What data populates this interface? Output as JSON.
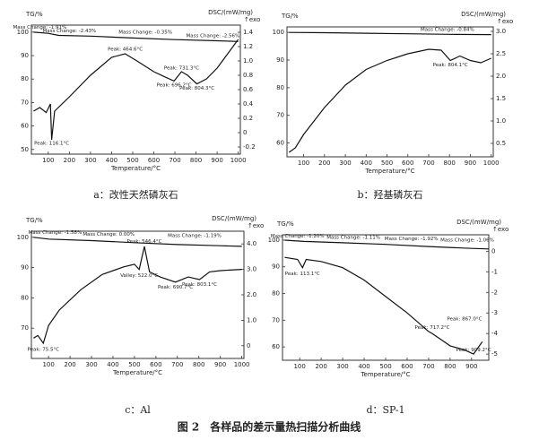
{
  "figure_caption": "图 2　各样品的差示量热扫描分析曲线",
  "chart_data": [
    {
      "type": "line",
      "caption": "a：改性天然磷灰石",
      "ylabel": "TG/%",
      "y2label": "DSC/(mW/mg)",
      "exo_label": "↑exo",
      "xlabel": "Temperature/°C",
      "xlim": [
        20,
        1010
      ],
      "xticks": [
        100,
        200,
        300,
        400,
        500,
        600,
        700,
        800,
        900,
        1000
      ],
      "ylim": [
        48,
        103
      ],
      "yticks": [
        50,
        60,
        70,
        80,
        90,
        100
      ],
      "y2lim": [
        -0.3,
        1.5
      ],
      "y2ticks": [
        -0.2,
        0,
        0.2,
        0.4,
        0.6,
        0.8,
        {
          "value": 1,
          "label": "1.0"
        },
        1.2,
        1.4
      ],
      "series": [
        {
          "color": "#111",
          "axis": "y",
          "x": [
            30,
            100,
            150,
            300,
            500,
            700,
            900,
            1000
          ],
          "values": [
            100,
            99.5,
            98.6,
            98.3,
            97.5,
            96.8,
            96.3,
            96
          ]
        },
        {
          "color": "#111",
          "axis": "y2",
          "x": [
            30,
            60,
            90,
            110,
            116,
            130,
            200,
            300,
            400,
            464,
            520,
            600,
            650,
            696,
            731,
            760,
            804,
            850,
            900,
            950,
            1000
          ],
          "values": [
            0.3,
            0.35,
            0.28,
            0.4,
            -0.1,
            0.3,
            0.5,
            0.8,
            1.05,
            1.1,
            1.0,
            0.85,
            0.78,
            0.72,
            0.85,
            0.8,
            0.68,
            0.75,
            0.9,
            1.1,
            1.3
          ]
        }
      ],
      "annotations": [
        {
          "text": "Mass Change: -1.91%",
          "x": 60,
          "y": 102,
          "axis": "y"
        },
        {
          "text": "Mass Change: -2.43%",
          "x": 200,
          "y": 100.5,
          "axis": "y"
        },
        {
          "text": "Mass Change: -0.35%",
          "x": 560,
          "y": 100,
          "axis": "y"
        },
        {
          "text": "Mass Change: -2.56%",
          "x": 880,
          "y": 98.5,
          "axis": "y"
        },
        {
          "text": "Peak: 116.1°C",
          "x": 116.1,
          "y": -0.15,
          "axis": "y2"
        },
        {
          "text": "Peak: 464.6°C",
          "x": 464.6,
          "y": 1.16,
          "axis": "y2"
        },
        {
          "text": "Peak: 731.3°C",
          "x": 731.3,
          "y": 0.9,
          "axis": "y2"
        },
        {
          "text": "Peak: 696.2°C",
          "x": 696.2,
          "y": 0.66,
          "axis": "y2"
        },
        {
          "text": "Peak: 804.3°C",
          "x": 804.3,
          "y": 0.62,
          "axis": "y2"
        }
      ]
    },
    {
      "type": "line",
      "caption": "b：羟基磷灰石",
      "ylabel": "TG/%",
      "y2label": "DSC/(mW/mg)",
      "exo_label": "↑exo",
      "xlabel": "Temperature/°C",
      "xlim": [
        20,
        1010
      ],
      "xticks": [
        100,
        200,
        300,
        400,
        500,
        600,
        700,
        800,
        900,
        1000
      ],
      "ylim": [
        55,
        102
      ],
      "yticks": [
        60,
        70,
        80,
        90,
        100
      ],
      "y2lim": [
        0.2,
        3.1
      ],
      "y2ticks": [
        0.5,
        {
          "value": 1,
          "label": "1.0"
        },
        1.5,
        {
          "value": 2,
          "label": "2.0"
        },
        2.5,
        {
          "value": 3,
          "label": "3.0"
        }
      ],
      "series": [
        {
          "color": "#111",
          "axis": "y",
          "x": [
            30,
            200,
            400,
            600,
            800,
            1000
          ],
          "values": [
            100,
            99.9,
            99.7,
            99.5,
            99.3,
            99.2
          ]
        },
        {
          "color": "#111",
          "axis": "y2",
          "x": [
            30,
            60,
            100,
            200,
            300,
            400,
            500,
            600,
            700,
            760,
            804,
            850,
            900,
            950,
            1000
          ],
          "values": [
            0.3,
            0.4,
            0.7,
            1.3,
            1.8,
            2.15,
            2.35,
            2.5,
            2.6,
            2.58,
            2.35,
            2.45,
            2.35,
            2.3,
            2.4
          ]
        }
      ],
      "annotations": [
        {
          "text": "Mass Change: -0.84%",
          "x": 790,
          "y": 101,
          "axis": "y"
        },
        {
          "text": "Peak: 804.1°C",
          "x": 804.1,
          "y": 2.25,
          "axis": "y2"
        }
      ]
    },
    {
      "type": "line",
      "caption": "c：Al",
      "ylabel": "TG/%",
      "y2label": "DSC/(mW/mg)",
      "exo_label": "↑exo",
      "xlabel": "Temperature/°C",
      "xlim": [
        20,
        1010
      ],
      "xticks": [
        100,
        200,
        300,
        400,
        500,
        600,
        700,
        800,
        900,
        1000
      ],
      "ylim": [
        60,
        102
      ],
      "yticks": [
        70,
        80,
        90,
        100
      ],
      "y2lim": [
        -0.5,
        4.5
      ],
      "y2ticks": [
        0,
        {
          "value": 1,
          "label": "1.0"
        },
        {
          "value": 2,
          "label": "2.0"
        },
        {
          "value": 3,
          "label": "3.0"
        },
        {
          "value": 4,
          "label": "4.0"
        }
      ],
      "series": [
        {
          "color": "#111",
          "axis": "y",
          "x": [
            30,
            100,
            300,
            500,
            700,
            900,
            1000
          ],
          "values": [
            100,
            99.4,
            98.9,
            98.2,
            97.6,
            97.2,
            97
          ]
        },
        {
          "color": "#111",
          "axis": "y2",
          "x": [
            30,
            50,
            75.5,
            100,
            150,
            250,
            350,
            450,
            500,
            522,
            546.4,
            570,
            620,
            690.7,
            750,
            803.1,
            850,
            900,
            1000
          ],
          "values": [
            0.3,
            0.4,
            0.1,
            0.8,
            1.4,
            2.2,
            2.8,
            3.1,
            3.2,
            3.0,
            3.9,
            2.9,
            2.7,
            2.5,
            2.7,
            2.6,
            2.9,
            2.95,
            3.0
          ]
        }
      ],
      "annotations": [
        {
          "text": "Mass Change: -1.58%",
          "x": 130,
          "y": 101.5,
          "axis": "y"
        },
        {
          "text": "Mass Change: 0.00%",
          "x": 380,
          "y": 101,
          "axis": "y"
        },
        {
          "text": "Mass Change: -1.19%",
          "x": 780,
          "y": 100.5,
          "axis": "y"
        },
        {
          "text": "Peak: 75.5°C",
          "x": 75.5,
          "y": -0.15,
          "axis": "y2"
        },
        {
          "text": "Valley: 522.0°C",
          "x": 522,
          "y": 2.75,
          "axis": "y2"
        },
        {
          "text": "Peak: 546.4°C",
          "x": 546.4,
          "y": 4.1,
          "axis": "y2"
        },
        {
          "text": "Peak: 690.7°C",
          "x": 690.7,
          "y": 2.3,
          "axis": "y2"
        },
        {
          "text": "Peak: 803.1°C",
          "x": 803.1,
          "y": 2.4,
          "axis": "y2"
        }
      ]
    },
    {
      "type": "line",
      "caption": "d：SP-1",
      "ylabel": "TG/%",
      "y2label": "DSC/(mW/mg)",
      "exo_label": "↑exo",
      "xlabel": "Temperature/°C",
      "xlim": [
        20,
        980
      ],
      "xticks": [
        100,
        200,
        300,
        400,
        500,
        600,
        700,
        800,
        900
      ],
      "ylim": [
        55,
        102
      ],
      "yticks": [
        60,
        70,
        80,
        90,
        100
      ],
      "y2lim": [
        -5.3,
        0.8
      ],
      "y2ticks": [
        -5,
        -4,
        -3,
        -2,
        -1,
        0
      ],
      "series": [
        {
          "color": "#111",
          "axis": "y",
          "x": [
            30,
            120,
            300,
            500,
            700,
            900,
            980
          ],
          "values": [
            100,
            99.5,
            99.0,
            98.4,
            97.6,
            96.9,
            96.7
          ]
        },
        {
          "color": "#111",
          "axis": "y2",
          "x": [
            30,
            90,
            113.1,
            130,
            200,
            300,
            400,
            500,
            600,
            700,
            717.2,
            800,
            867,
            909.2,
            950
          ],
          "values": [
            -0.3,
            -0.4,
            -0.8,
            -0.4,
            -0.5,
            -0.8,
            -1.4,
            -2.2,
            -3.0,
            -3.9,
            -4.0,
            -4.6,
            -4.8,
            -5.0,
            -4.4
          ]
        }
      ],
      "annotations": [
        {
          "text": "Mass Change: -1.20%",
          "x": 90,
          "y": 101.5,
          "axis": "y"
        },
        {
          "text": "Mass Change: -1.11%",
          "x": 350,
          "y": 101,
          "axis": "y"
        },
        {
          "text": "Mass Change: -1.92%",
          "x": 620,
          "y": 100.5,
          "axis": "y"
        },
        {
          "text": "Mass Change: -1.06%",
          "x": 880,
          "y": 100,
          "axis": "y"
        },
        {
          "text": "Peak: 113.1°C",
          "x": 113.1,
          "y": -1.1,
          "axis": "y2"
        },
        {
          "text": "Peak: 717.2°C",
          "x": 717.2,
          "y": -3.7,
          "axis": "y2"
        },
        {
          "text": "Peak: 867.0°C",
          "x": 867,
          "y": -3.3,
          "axis": "y2"
        },
        {
          "text": "Peak: 909.2°C",
          "x": 909.2,
          "y": -4.8,
          "axis": "y2"
        }
      ]
    }
  ]
}
